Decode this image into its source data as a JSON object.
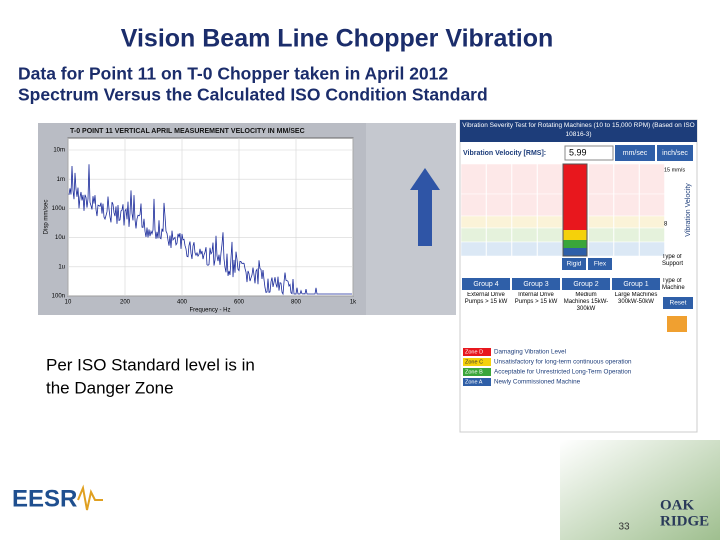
{
  "header": {
    "title": "Vision Beam Line Chopper Vibration",
    "subtitle": [
      "Data for Point 11 on T-0 Chopper taken in April 2012",
      "Spectrum Versus the Calculated ISO Condition Standard"
    ]
  },
  "spectrum": {
    "title": "T-0 POINT 11 VERTICAL APRIL MEASUREMENT VELOCITY IN MM/SEC",
    "y_labels": [
      "10m",
      "1m",
      "100u",
      "10u",
      "1u",
      "100n"
    ],
    "x_labels": [
      "10",
      "200",
      "400",
      "600",
      "800",
      "1k"
    ],
    "x_axis": "Frequency - Hz",
    "y_axis": "Disp mm/sec"
  },
  "iso": {
    "header": "Vibration Severity Test for Rotating Machines (10 to 15,000 RPM) (Based on ISO 10816-3)",
    "velocity_label": "Vibration Velocity [RMS]:",
    "velocity_value": "5.99",
    "units": [
      "mm/sec",
      "inch/sec"
    ],
    "scale_labels": [
      "15 mm/s",
      "8"
    ],
    "axis_label": "Vibration Velocity",
    "support": [
      "Rigid",
      "Flex"
    ],
    "support_label": "Type of Support",
    "groups": [
      "Group 4",
      "Group 3",
      "Group 2",
      "Group 1"
    ],
    "machine_label": "Type of Machine",
    "group_desc": [
      "External Drive Pumps > 15 kW",
      "Internal Drive Pumps > 15 kW",
      "Medium Machines 15kW-300kW",
      "Large Machines 300kW-50kW"
    ],
    "reset": "Reset",
    "legend": [
      {
        "zone": "Zone D",
        "text": "Damaging Vibration Level"
      },
      {
        "zone": "Zone C",
        "text": "Unsatisfactory for long-term continuous operation"
      },
      {
        "zone": "Zone B",
        "text": "Acceptable for Unrestricted Long-Term Operation"
      },
      {
        "zone": "Zone A",
        "text": "Newly Commissioned Machine"
      }
    ]
  },
  "note": [
    "Per ISO Standard level is in",
    "the Danger Zone"
  ],
  "footer": {
    "logo_left": "EESR",
    "page": "33",
    "logo_right": [
      "OAK",
      "RIDGE"
    ]
  }
}
